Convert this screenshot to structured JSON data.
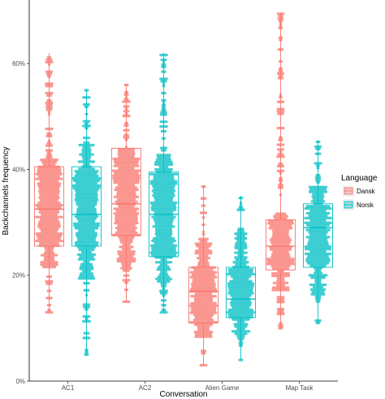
{
  "chart_data": {
    "type": "box+beeswarm",
    "xlabel": "Conversation",
    "ylabel": "Backchannels frequency",
    "categories": [
      "AC1",
      "AC2",
      "Alien Game",
      "Map Task"
    ],
    "ylim": [
      0,
      0.72
    ],
    "yticks": [
      0,
      0.2,
      0.4,
      0.6
    ],
    "ytick_labels": [
      "0%",
      "20%",
      "40%",
      "60%"
    ],
    "legend": {
      "title": "Language",
      "position": "right"
    },
    "series": [
      {
        "name": "Dansk",
        "color": "#F8766D",
        "boxes": [
          {
            "category": "AC1",
            "q1": 0.255,
            "median": 0.325,
            "q3": 0.405,
            "whisker_low": 0.13,
            "whisker_high": 0.62,
            "swarm_min": 0.13,
            "swarm_max": 0.615,
            "dense_low": 0.215,
            "dense_high": 0.42
          },
          {
            "category": "AC2",
            "q1": 0.275,
            "median": 0.335,
            "q3": 0.44,
            "whisker_low": 0.15,
            "whisker_high": 0.56,
            "swarm_min": 0.15,
            "swarm_max": 0.56,
            "dense_low": 0.21,
            "dense_high": 0.4
          },
          {
            "category": "Alien Game",
            "q1": 0.11,
            "median": 0.17,
            "q3": 0.215,
            "whisker_low": 0.03,
            "whisker_high": 0.37,
            "swarm_min": 0.03,
            "swarm_max": 0.37,
            "dense_low": 0.08,
            "dense_high": 0.27
          },
          {
            "category": "Map Task",
            "q1": 0.21,
            "median": 0.255,
            "q3": 0.305,
            "whisker_low": 0.1,
            "whisker_high": 0.695,
            "swarm_min": 0.1,
            "swarm_max": 0.695,
            "dense_low": 0.17,
            "dense_high": 0.32
          }
        ]
      },
      {
        "name": "Norsk",
        "color": "#00BFC4",
        "boxes": [
          {
            "category": "AC1",
            "q1": 0.255,
            "median": 0.315,
            "q3": 0.405,
            "whisker_low": 0.05,
            "whisker_high": 0.55,
            "swarm_min": 0.05,
            "swarm_max": 0.55,
            "dense_low": 0.19,
            "dense_high": 0.45
          },
          {
            "category": "AC2",
            "q1": 0.235,
            "median": 0.315,
            "q3": 0.395,
            "whisker_low": 0.13,
            "whisker_high": 0.62,
            "swarm_min": 0.13,
            "swarm_max": 0.62,
            "dense_low": 0.18,
            "dense_high": 0.43
          },
          {
            "category": "Alien Game",
            "q1": 0.12,
            "median": 0.155,
            "q3": 0.215,
            "whisker_low": 0.04,
            "whisker_high": 0.35,
            "swarm_min": 0.04,
            "swarm_max": 0.35,
            "dense_low": 0.08,
            "dense_high": 0.29
          },
          {
            "category": "Map Task",
            "q1": 0.215,
            "median": 0.29,
            "q3": 0.335,
            "whisker_low": 0.11,
            "whisker_high": 0.455,
            "swarm_min": 0.11,
            "swarm_max": 0.455,
            "dense_low": 0.16,
            "dense_high": 0.37
          }
        ]
      }
    ]
  }
}
